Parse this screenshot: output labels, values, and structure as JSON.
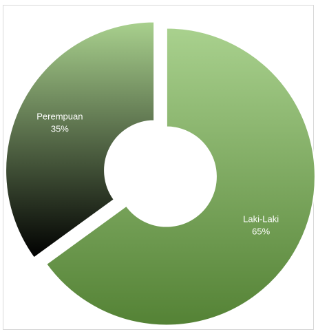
{
  "chart_data": {
    "type": "pie",
    "variant": "doughnut-exploded",
    "title": "",
    "legend": "none",
    "slices": [
      {
        "label": "Laki-Laki",
        "value": 65,
        "percent_label": "65%"
      },
      {
        "label": "Perempuan",
        "value": 35,
        "percent_label": "35%"
      }
    ],
    "colors": {
      "laki_laki": [
        "#a9d18e",
        "#548235"
      ],
      "perempuan": [
        "#a9d18e",
        "#000000"
      ],
      "label_text": "#ffffff"
    }
  }
}
